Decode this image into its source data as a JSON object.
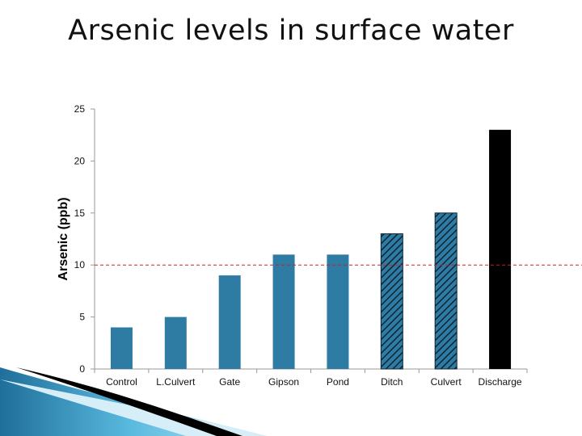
{
  "slide": {
    "title": "Arsenic levels in surface water"
  },
  "colors": {
    "bar_blue": "#2e7ba4",
    "bar_black": "#000000",
    "threshold_line": "#cc2222",
    "axis": "#999999"
  },
  "chart_data": {
    "type": "bar",
    "title": "",
    "xlabel": "",
    "ylabel": "Arsenic (ppb)",
    "ylim": [
      0,
      25
    ],
    "yticks": [
      0,
      5,
      10,
      15,
      20,
      25
    ],
    "grid": false,
    "legend": "none",
    "categories": [
      "Control",
      "L.Culvert",
      "Gate",
      "Gipson",
      "Pond",
      "Ditch",
      "Culvert",
      "Discharge"
    ],
    "values": [
      4,
      5,
      9,
      11,
      11,
      13,
      15,
      23
    ],
    "bar_styles": [
      "solid-blue",
      "solid-blue",
      "solid-blue",
      "solid-blue",
      "solid-blue",
      "hatched-blue",
      "hatched-blue",
      "solid-black"
    ],
    "reference_line": {
      "value": 10,
      "style": "dashed",
      "color": "#cc2222"
    }
  }
}
